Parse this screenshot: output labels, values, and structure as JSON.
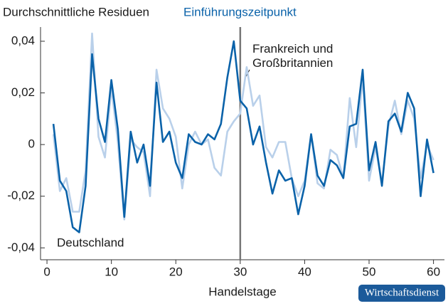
{
  "chart_data": {
    "type": "line",
    "title": "Durchschnittliche Residuen",
    "subtitle": "Einführungszeitpunkt",
    "xlabel": "Handelstage",
    "source": "Wirtschaftsdienst",
    "x": [
      1,
      2,
      3,
      4,
      5,
      6,
      7,
      8,
      9,
      10,
      11,
      12,
      13,
      14,
      15,
      16,
      17,
      18,
      19,
      20,
      21,
      22,
      23,
      24,
      25,
      26,
      27,
      28,
      29,
      30,
      31,
      32,
      33,
      34,
      35,
      36,
      37,
      38,
      39,
      40,
      41,
      42,
      43,
      44,
      45,
      46,
      47,
      48,
      49,
      50,
      51,
      52,
      53,
      54,
      55,
      56,
      57,
      58,
      59,
      60
    ],
    "series": [
      {
        "name": "Deutschland",
        "color": "#0a62a9",
        "values": [
          0.008,
          -0.014,
          -0.018,
          -0.032,
          -0.034,
          -0.016,
          0.035,
          0.01,
          0.001,
          0.025,
          0.006,
          -0.028,
          0.005,
          -0.007,
          0.0,
          -0.016,
          0.024,
          0.001,
          0.005,
          -0.007,
          -0.013,
          0.004,
          0.001,
          0.0,
          0.004,
          0.002,
          0.008,
          0.026,
          0.04,
          0.017,
          0.014,
          0.0,
          0.007,
          -0.007,
          -0.019,
          -0.01,
          -0.014,
          -0.013,
          -0.027,
          -0.016,
          0.004,
          -0.012,
          -0.016,
          -0.006,
          -0.008,
          -0.013,
          0.007,
          0.008,
          0.029,
          -0.01,
          0.001,
          -0.016,
          0.009,
          0.012,
          0.005,
          0.02,
          0.014,
          -0.02,
          0.002,
          -0.011
        ]
      },
      {
        "name": "Frankreich und Großbritannien",
        "color": "#b9d0ea",
        "values": [
          0.004,
          -0.018,
          -0.013,
          -0.026,
          -0.026,
          -0.01,
          0.043,
          0.003,
          -0.005,
          0.022,
          0.001,
          -0.029,
          0.002,
          -0.001,
          -0.003,
          -0.02,
          0.029,
          0.014,
          0.01,
          0.003,
          -0.017,
          0.0,
          0.005,
          0.0,
          0.002,
          -0.009,
          -0.012,
          0.005,
          0.009,
          0.012,
          0.03,
          0.015,
          0.019,
          -0.001,
          -0.005,
          0.001,
          0.001,
          -0.013,
          -0.02,
          -0.014,
          0.004,
          -0.015,
          -0.017,
          -0.002,
          -0.004,
          -0.013,
          0.018,
          -0.001,
          0.026,
          -0.014,
          -0.001,
          -0.015,
          0.007,
          0.017,
          0.004,
          0.017,
          0.01,
          -0.013,
          0.0,
          -0.006
        ]
      }
    ],
    "vertical_line_x": 30,
    "xlim": [
      -1,
      61.7
    ],
    "ylim": [
      -0.0446,
      0.0455
    ],
    "xticks": [
      0,
      10,
      20,
      30,
      40,
      50,
      60
    ],
    "yticks": [
      {
        "value": 0.04,
        "label": "0,04"
      },
      {
        "value": 0.02,
        "label": "0,02"
      },
      0,
      {
        "value": -0.02,
        "label": "-0,02"
      },
      {
        "value": -0.04,
        "label": "-0,04"
      }
    ]
  }
}
